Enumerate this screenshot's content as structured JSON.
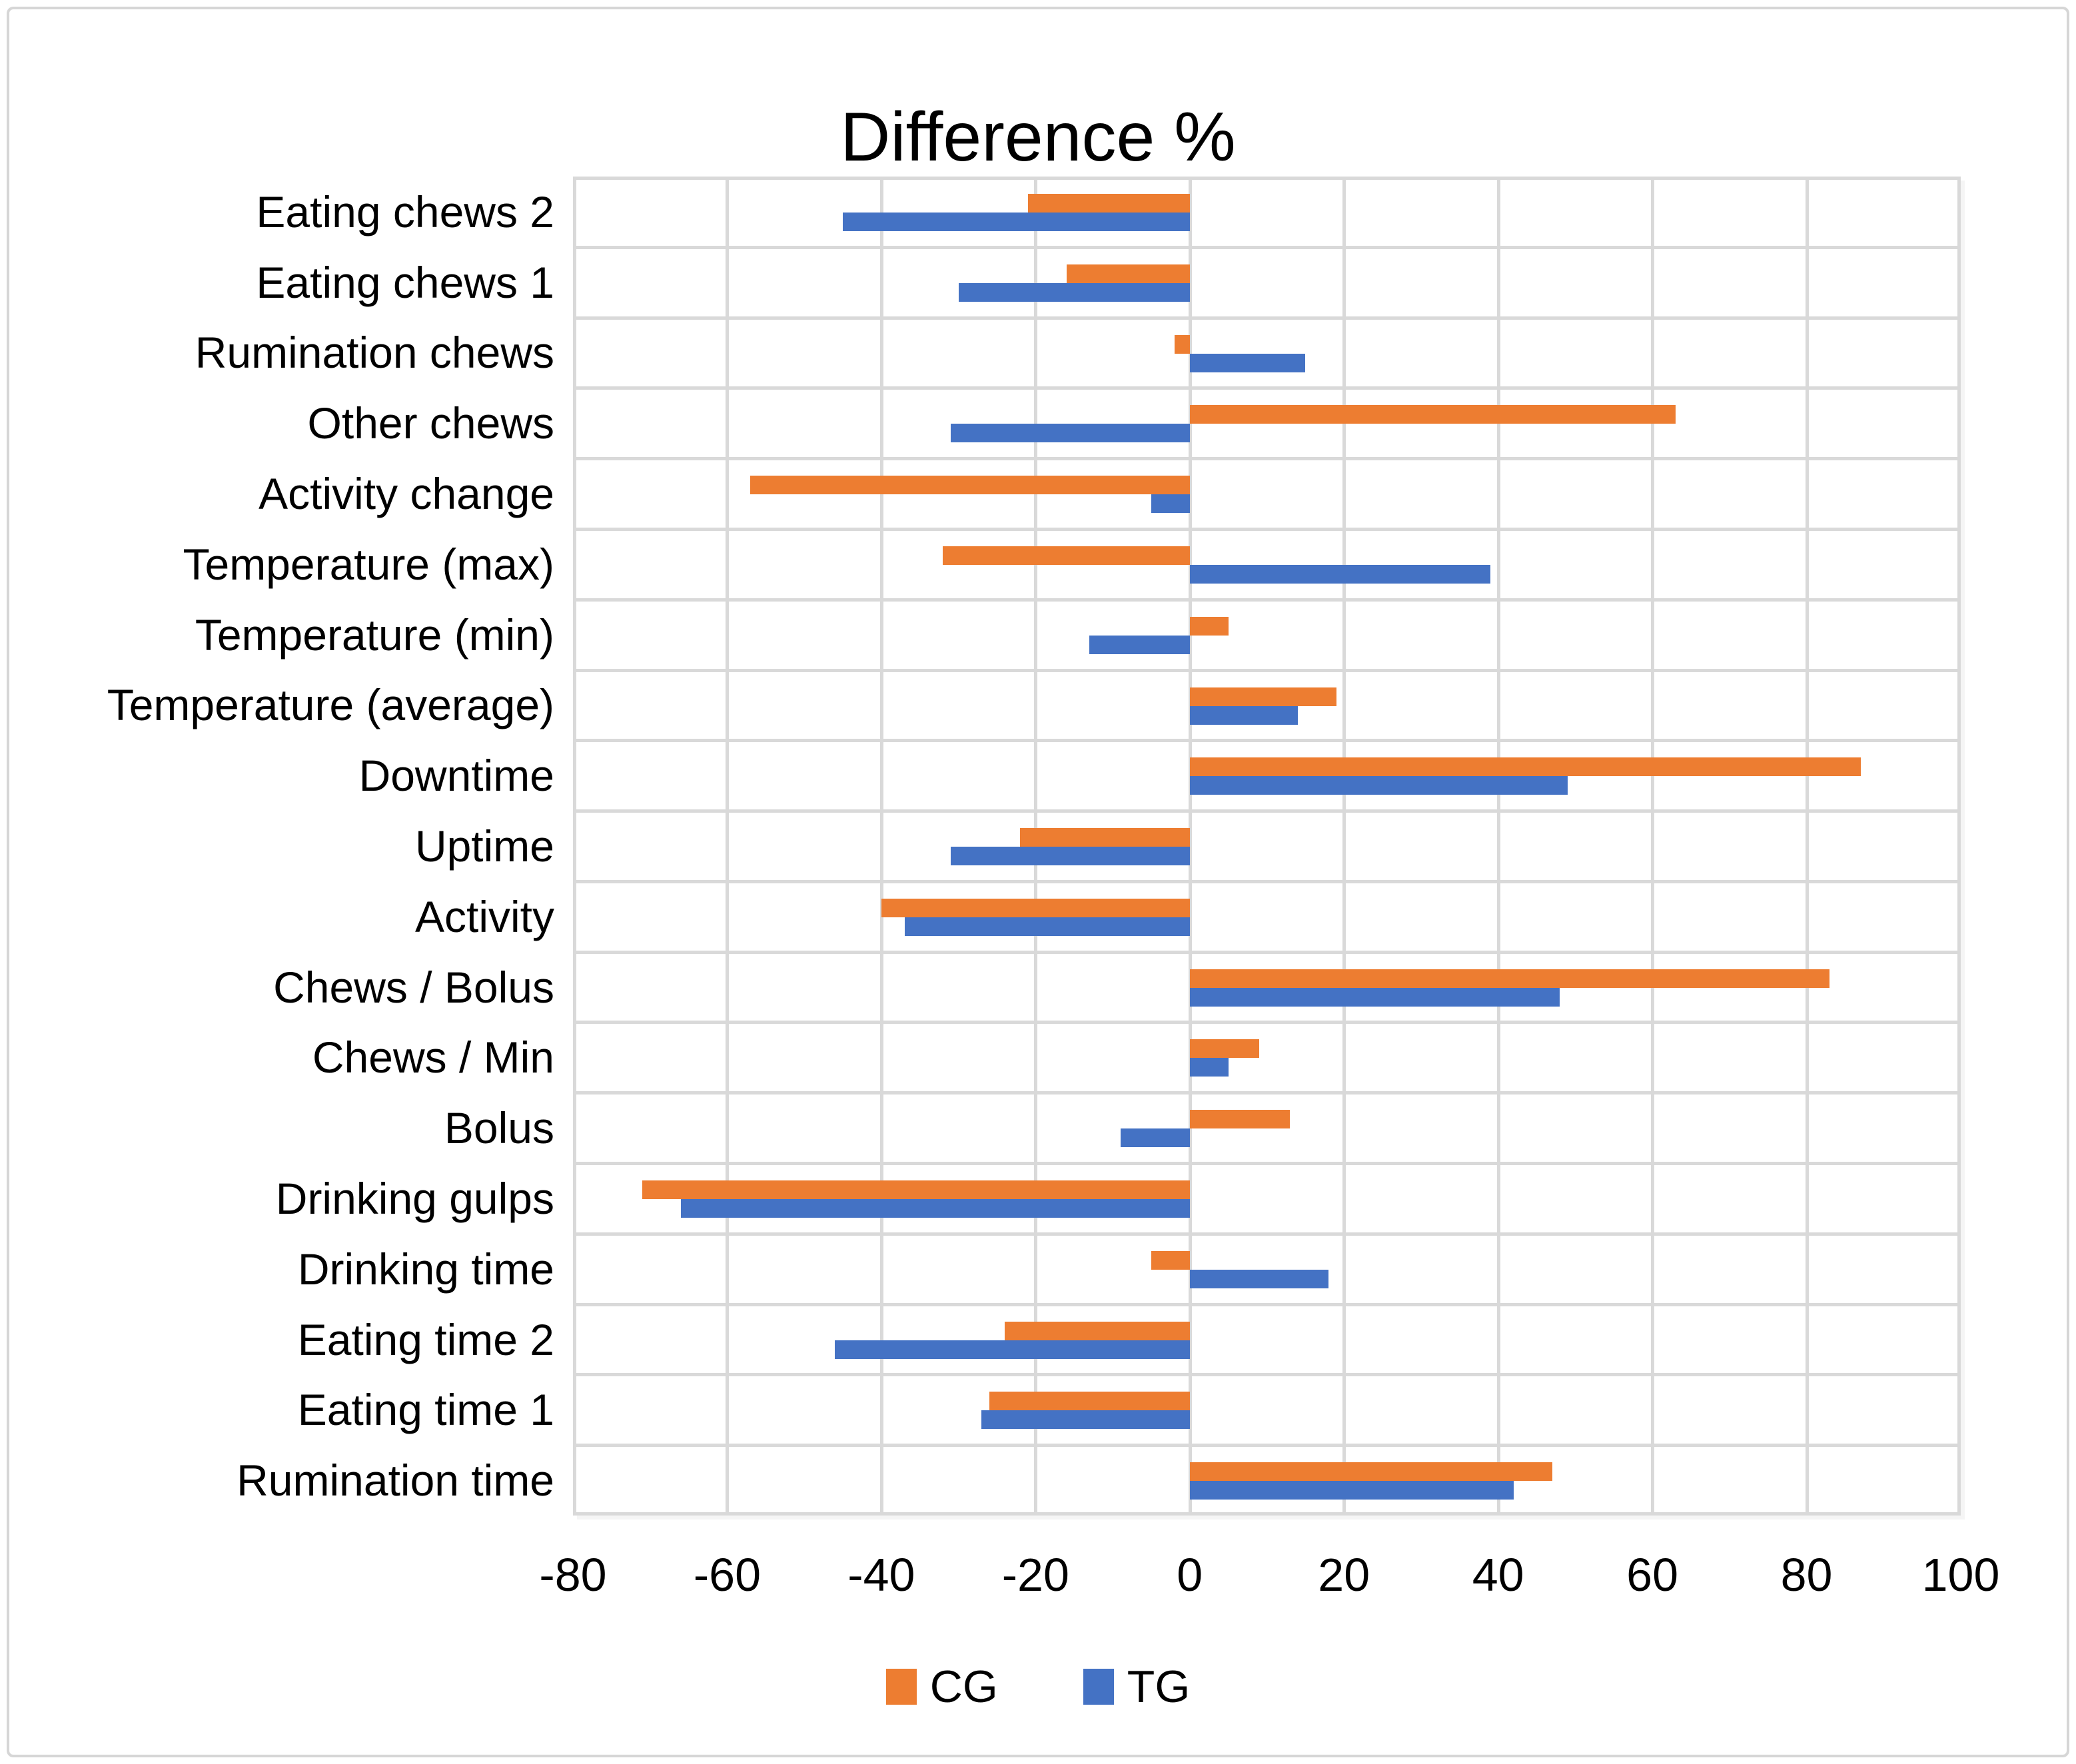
{
  "title": "Difference %",
  "chart_data": {
    "type": "bar",
    "orientation": "horizontal",
    "title": "Difference %",
    "categories": [
      "Eating chews 2",
      "Eating chews 1",
      "Rumination chews",
      "Other chews",
      "Activity change",
      "Temperature (max)",
      "Temperature (min)",
      "Temperature (average)",
      "Downtime",
      "Uptime",
      "Activity",
      "Chews / Bolus",
      "Chews / Min",
      "Bolus",
      "Drinking gulps",
      "Drinking time",
      "Eating time 2",
      "Eating time 1",
      "Rumination time"
    ],
    "series": [
      {
        "name": "CG",
        "color": "#ED7D31",
        "values": [
          -21,
          -16,
          -2,
          63,
          -57,
          -32,
          5,
          19,
          87,
          -22,
          -40,
          83,
          9,
          13,
          -71,
          -5,
          -24,
          -26,
          47
        ]
      },
      {
        "name": "TG",
        "color": "#4472C4",
        "values": [
          -45,
          -30,
          15,
          -31,
          -5,
          39,
          -13,
          14,
          49,
          -31,
          -37,
          48,
          5,
          -9,
          -66,
          18,
          -46,
          -27,
          42
        ]
      }
    ],
    "xlim": [
      -80,
      100
    ],
    "x_ticks": [
      -80,
      -60,
      -40,
      -20,
      0,
      20,
      40,
      60,
      80,
      100
    ],
    "grid": true,
    "gridline_color": "#D9D9D9",
    "legend_position": "bottom",
    "legend_entries": [
      "CG",
      "TG"
    ]
  }
}
